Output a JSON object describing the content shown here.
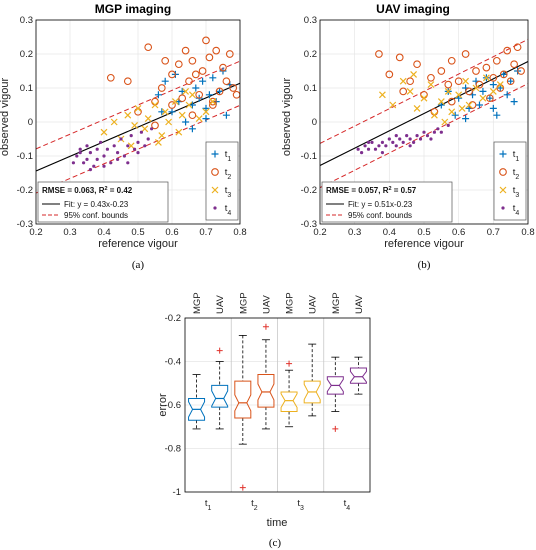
{
  "captions": [
    "(a)",
    "(b)",
    "(c)"
  ],
  "chart_data": [
    {
      "type": "scatter",
      "title": "MGP imaging",
      "xlabel": "reference vigour",
      "ylabel": "observed vigour",
      "xlim": [
        0.2,
        0.8
      ],
      "ylim": [
        -0.3,
        0.3
      ],
      "xticks": [
        "0.2",
        "0.3",
        "0.4",
        "0.5",
        "0.6",
        "0.7",
        "0.8"
      ],
      "yticks": [
        "-0.3",
        "-0.2",
        "-0.1",
        "0",
        "0.1",
        "0.2",
        "0.3"
      ],
      "grid": true,
      "legend_position": "bottom-right",
      "legend": [
        "t1",
        "t2",
        "t3",
        "t4"
      ],
      "stats_legend": {
        "rmse": "RMSE = 0.063, R",
        "r2": " = 0.42",
        "fit": "Fit: y = 0.43x-0.23",
        "conf": "95% conf. bounds"
      },
      "fit": {
        "slope": 0.43,
        "intercept": -0.23,
        "band": 0.065,
        "x_range": [
          0.2,
          0.8
        ]
      },
      "series": [
        {
          "name": "t1",
          "marker": "+",
          "color": "#0072BD",
          "x": [
            0.56,
            0.58,
            0.6,
            0.62,
            0.63,
            0.64,
            0.66,
            0.67,
            0.68,
            0.69,
            0.7,
            0.71,
            0.72,
            0.73,
            0.74,
            0.75,
            0.76,
            0.77,
            0.66,
            0.61,
            0.57,
            0.7
          ],
          "y": [
            0.08,
            0.12,
            0.03,
            0.06,
            0.09,
            0.0,
            0.05,
            0.1,
            0.07,
            0.12,
            0.04,
            0.08,
            0.13,
            0.06,
            0.09,
            0.15,
            0.02,
            0.11,
            -0.02,
            0.14,
            0.03,
            0.01
          ]
        },
        {
          "name": "t2",
          "marker": "o",
          "color": "#D95319",
          "x": [
            0.42,
            0.47,
            0.5,
            0.53,
            0.55,
            0.57,
            0.58,
            0.6,
            0.62,
            0.63,
            0.64,
            0.65,
            0.66,
            0.67,
            0.68,
            0.69,
            0.7,
            0.71,
            0.72,
            0.73,
            0.74,
            0.75,
            0.76,
            0.77,
            0.78,
            0.6,
            0.55,
            0.72,
            0.66,
            0.79
          ],
          "y": [
            0.13,
            0.12,
            0.03,
            0.22,
            0.06,
            0.1,
            0.18,
            0.05,
            0.17,
            0.07,
            0.21,
            0.12,
            0.02,
            0.14,
            0.08,
            0.15,
            0.24,
            0.19,
            0.06,
            0.21,
            0.09,
            0.16,
            0.12,
            0.2,
            0.1,
            0.14,
            -0.01,
            0.05,
            0.18,
            0.08
          ]
        },
        {
          "name": "t3",
          "marker": "x",
          "color": "#EDB120",
          "x": [
            0.4,
            0.43,
            0.45,
            0.47,
            0.49,
            0.5,
            0.52,
            0.53,
            0.55,
            0.56,
            0.58,
            0.59,
            0.61,
            0.62,
            0.63,
            0.65,
            0.66,
            0.68,
            0.7,
            0.72,
            0.48,
            0.57,
            0.64
          ],
          "y": [
            -0.03,
            0.0,
            -0.05,
            0.02,
            -0.01,
            0.04,
            -0.02,
            0.01,
            0.05,
            -0.06,
            0.03,
            0.0,
            0.06,
            -0.03,
            0.02,
            0.05,
            0.08,
            0.01,
            0.03,
            0.06,
            -0.07,
            -0.04,
            0.09
          ]
        },
        {
          "name": "t4",
          "marker": ".",
          "color": "#7E2F8E",
          "x": [
            0.31,
            0.32,
            0.33,
            0.34,
            0.35,
            0.35,
            0.36,
            0.37,
            0.38,
            0.38,
            0.39,
            0.4,
            0.41,
            0.42,
            0.43,
            0.44,
            0.45,
            0.46,
            0.47,
            0.48,
            0.49,
            0.5,
            0.51,
            0.52,
            0.53,
            0.54,
            0.36,
            0.4,
            0.44,
            0.47,
            0.5,
            0.33
          ],
          "y": [
            -0.12,
            -0.1,
            -0.09,
            -0.12,
            -0.07,
            -0.11,
            -0.09,
            -0.13,
            -0.08,
            -0.11,
            -0.06,
            -0.1,
            -0.08,
            -0.12,
            -0.07,
            -0.09,
            -0.05,
            -0.1,
            -0.07,
            -0.04,
            -0.08,
            -0.06,
            -0.03,
            -0.07,
            -0.05,
            -0.02,
            -0.14,
            -0.13,
            -0.11,
            -0.12,
            -0.09,
            -0.08
          ]
        }
      ]
    },
    {
      "type": "scatter",
      "title": "UAV imaging",
      "xlabel": "reference vigour",
      "ylabel": "observed vigour",
      "xlim": [
        0.2,
        0.8
      ],
      "ylim": [
        -0.3,
        0.3
      ],
      "xticks": [
        "0.2",
        "0.3",
        "0.4",
        "0.5",
        "0.6",
        "0.7",
        "0.8"
      ],
      "yticks": [
        "-0.3",
        "-0.2",
        "-0.1",
        "0",
        "0.1",
        "0.2",
        "0.3"
      ],
      "grid": true,
      "legend_position": "bottom-right",
      "legend": [
        "t1",
        "t2",
        "t3",
        "t4"
      ],
      "stats_legend": {
        "rmse": "RMSE = 0.057, R",
        "r2": " = 0.57",
        "fit": "Fit: y = 0.51x-0.23",
        "conf": "95% conf. bounds"
      },
      "fit": {
        "slope": 0.51,
        "intercept": -0.23,
        "band": 0.065,
        "x_range": [
          0.2,
          0.8
        ]
      },
      "series": [
        {
          "name": "t1",
          "marker": "+",
          "color": "#0072BD",
          "x": [
            0.55,
            0.57,
            0.59,
            0.6,
            0.62,
            0.63,
            0.64,
            0.65,
            0.66,
            0.67,
            0.68,
            0.69,
            0.7,
            0.71,
            0.72,
            0.73,
            0.74,
            0.75,
            0.76,
            0.77,
            0.62,
            0.7
          ],
          "y": [
            0.05,
            0.09,
            0.02,
            0.07,
            0.1,
            0.04,
            0.08,
            0.12,
            0.05,
            0.09,
            0.13,
            0.07,
            0.11,
            0.02,
            0.1,
            0.14,
            0.08,
            0.12,
            0.06,
            0.15,
            0.01,
            0.04
          ]
        },
        {
          "name": "t2",
          "marker": "o",
          "color": "#D95319",
          "x": [
            0.37,
            0.4,
            0.43,
            0.46,
            0.48,
            0.5,
            0.52,
            0.55,
            0.57,
            0.58,
            0.6,
            0.62,
            0.63,
            0.65,
            0.66,
            0.68,
            0.69,
            0.7,
            0.71,
            0.72,
            0.73,
            0.74,
            0.75,
            0.76,
            0.77,
            0.78,
            0.53,
            0.58,
            0.64,
            0.44
          ],
          "y": [
            0.2,
            0.14,
            0.19,
            0.12,
            0.17,
            0.08,
            0.13,
            0.15,
            0.11,
            0.06,
            0.12,
            0.2,
            0.09,
            0.15,
            0.11,
            0.16,
            0.07,
            0.13,
            0.18,
            0.1,
            0.14,
            0.21,
            0.12,
            0.17,
            0.22,
            0.15,
            0.03,
            0.18,
            0.05,
            0.09
          ]
        },
        {
          "name": "t3",
          "marker": "x",
          "color": "#EDB120",
          "x": [
            0.38,
            0.41,
            0.44,
            0.46,
            0.48,
            0.5,
            0.52,
            0.53,
            0.55,
            0.57,
            0.58,
            0.6,
            0.62,
            0.63,
            0.65,
            0.67,
            0.68,
            0.7,
            0.72,
            0.47,
            0.56,
            0.61
          ],
          "y": [
            0.08,
            0.05,
            0.12,
            0.09,
            0.04,
            0.07,
            0.11,
            0.02,
            0.06,
            0.09,
            0.03,
            0.08,
            0.12,
            0.05,
            0.1,
            0.07,
            0.13,
            0.09,
            0.11,
            0.14,
            0.0,
            0.04
          ]
        },
        {
          "name": "t4",
          "marker": ".",
          "color": "#7E2F8E",
          "x": [
            0.31,
            0.32,
            0.33,
            0.34,
            0.35,
            0.36,
            0.37,
            0.38,
            0.39,
            0.4,
            0.41,
            0.42,
            0.43,
            0.44,
            0.45,
            0.46,
            0.47,
            0.48,
            0.49,
            0.5,
            0.51,
            0.52,
            0.53,
            0.54,
            0.55,
            0.57,
            0.34,
            0.38,
            0.42,
            0.46
          ],
          "y": [
            -0.08,
            -0.09,
            -0.07,
            -0.08,
            -0.06,
            -0.08,
            -0.07,
            -0.06,
            -0.07,
            -0.05,
            -0.06,
            -0.07,
            -0.05,
            -0.06,
            -0.04,
            -0.05,
            -0.06,
            -0.04,
            -0.05,
            -0.03,
            -0.04,
            -0.05,
            -0.03,
            -0.02,
            -0.03,
            -0.01,
            -0.06,
            -0.09,
            -0.04,
            -0.07
          ]
        }
      ]
    },
    {
      "type": "box",
      "title": "",
      "xlabel": "time",
      "ylabel": "error",
      "ylim": [
        -1,
        -0.2
      ],
      "yticks": [
        "-1",
        "-0.8",
        "-0.6",
        "-0.4",
        "-0.2"
      ],
      "grid": true,
      "groups": [
        "t1",
        "t2",
        "t3",
        "t4"
      ],
      "top_labels": [
        "MGP",
        "UAV",
        "MGP",
        "UAV",
        "MGP",
        "UAV",
        "MGP",
        "UAV"
      ],
      "boxes": [
        {
          "group": "t1",
          "sensor": "MGP",
          "color": "#0072BD",
          "whisker_low": -0.71,
          "q1": -0.67,
          "median": -0.62,
          "q3": -0.57,
          "whisker_high": -0.46,
          "outliers": []
        },
        {
          "group": "t1",
          "sensor": "UAV",
          "color": "#0072BD",
          "whisker_low": -0.71,
          "q1": -0.61,
          "median": -0.57,
          "q3": -0.51,
          "whisker_high": -0.4,
          "outliers": [
            -0.35
          ]
        },
        {
          "group": "t2",
          "sensor": "MGP",
          "color": "#D95319",
          "whisker_low": -0.78,
          "q1": -0.66,
          "median": -0.59,
          "q3": -0.49,
          "whisker_high": -0.28,
          "outliers": [
            -0.98
          ]
        },
        {
          "group": "t2",
          "sensor": "UAV",
          "color": "#D95319",
          "whisker_low": -0.71,
          "q1": -0.61,
          "median": -0.54,
          "q3": -0.46,
          "whisker_high": -0.3,
          "outliers": [
            -0.24
          ]
        },
        {
          "group": "t3",
          "sensor": "MGP",
          "color": "#EDB120",
          "whisker_low": -0.7,
          "q1": -0.63,
          "median": -0.58,
          "q3": -0.54,
          "whisker_high": -0.44,
          "outliers": [
            -0.41
          ]
        },
        {
          "group": "t3",
          "sensor": "UAV",
          "color": "#EDB120",
          "whisker_low": -0.65,
          "q1": -0.59,
          "median": -0.54,
          "q3": -0.49,
          "whisker_high": -0.32,
          "outliers": []
        },
        {
          "group": "t4",
          "sensor": "MGP",
          "color": "#7E2F8E",
          "whisker_low": -0.63,
          "q1": -0.55,
          "median": -0.51,
          "q3": -0.47,
          "whisker_high": -0.38,
          "outliers": [
            -0.71
          ]
        },
        {
          "group": "t4",
          "sensor": "UAV",
          "color": "#7E2F8E",
          "whisker_low": -0.55,
          "q1": -0.5,
          "median": -0.47,
          "q3": -0.43,
          "whisker_high": -0.38,
          "outliers": []
        }
      ]
    }
  ]
}
